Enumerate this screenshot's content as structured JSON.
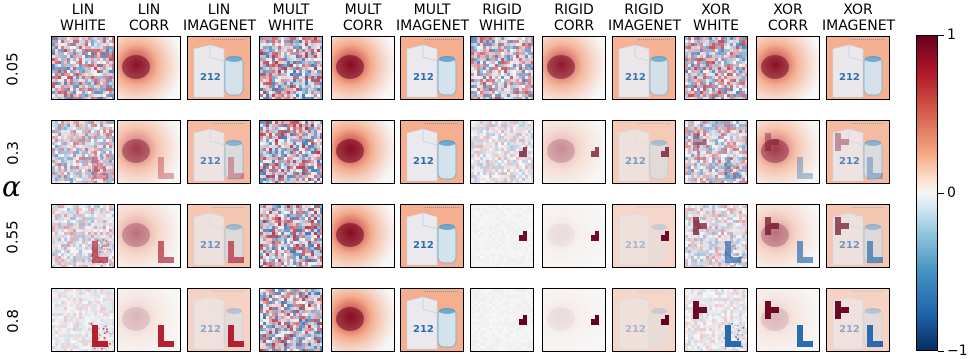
{
  "columns": [
    {
      "line1": "LIN",
      "line2": "WHITE",
      "type": "lin",
      "bg": "white"
    },
    {
      "line1": "LIN",
      "line2": "CORR",
      "type": "lin",
      "bg": "corr"
    },
    {
      "line1": "LIN",
      "line2": "IMAGENET",
      "type": "lin",
      "bg": "imagenet"
    },
    {
      "line1": "MULT",
      "line2": "WHITE",
      "type": "mult",
      "bg": "white"
    },
    {
      "line1": "MULT",
      "line2": "CORR",
      "type": "mult",
      "bg": "corr"
    },
    {
      "line1": "MULT",
      "line2": "IMAGENET",
      "type": "mult",
      "bg": "imagenet"
    },
    {
      "line1": "RIGID",
      "line2": "WHITE",
      "type": "rigid",
      "bg": "white"
    },
    {
      "line1": "RIGID",
      "line2": "CORR",
      "type": "rigid",
      "bg": "corr"
    },
    {
      "line1": "RIGID",
      "line2": "IMAGENET",
      "type": "rigid",
      "bg": "imagenet"
    },
    {
      "line1": "XOR",
      "line2": "WHITE",
      "type": "xor",
      "bg": "white"
    },
    {
      "line1": "XOR",
      "line2": "CORR",
      "type": "xor",
      "bg": "corr"
    },
    {
      "line1": "XOR",
      "line2": "IMAGENET",
      "type": "xor",
      "bg": "imagenet"
    }
  ],
  "rows": [
    {
      "label": "0.05",
      "alpha": 0.05
    },
    {
      "label": "0.3",
      "alpha": 0.3
    },
    {
      "label": "0.55",
      "alpha": 0.55
    },
    {
      "label": "0.8",
      "alpha": 0.8
    }
  ],
  "axis_label": "α",
  "imagenet_text": "212",
  "colorbar": {
    "ticks": [
      {
        "label": "1",
        "value": 1
      },
      {
        "label": "0",
        "value": 0
      },
      {
        "label": "−1",
        "value": -1
      }
    ]
  },
  "colors": {
    "red_dark": "#67001f",
    "red": "#b2182b",
    "salmon": "#f4a582",
    "white": "#f7f7f7",
    "blue_light": "#d1e5f0",
    "blue": "#2166ac",
    "blue_dark": "#053061"
  }
}
